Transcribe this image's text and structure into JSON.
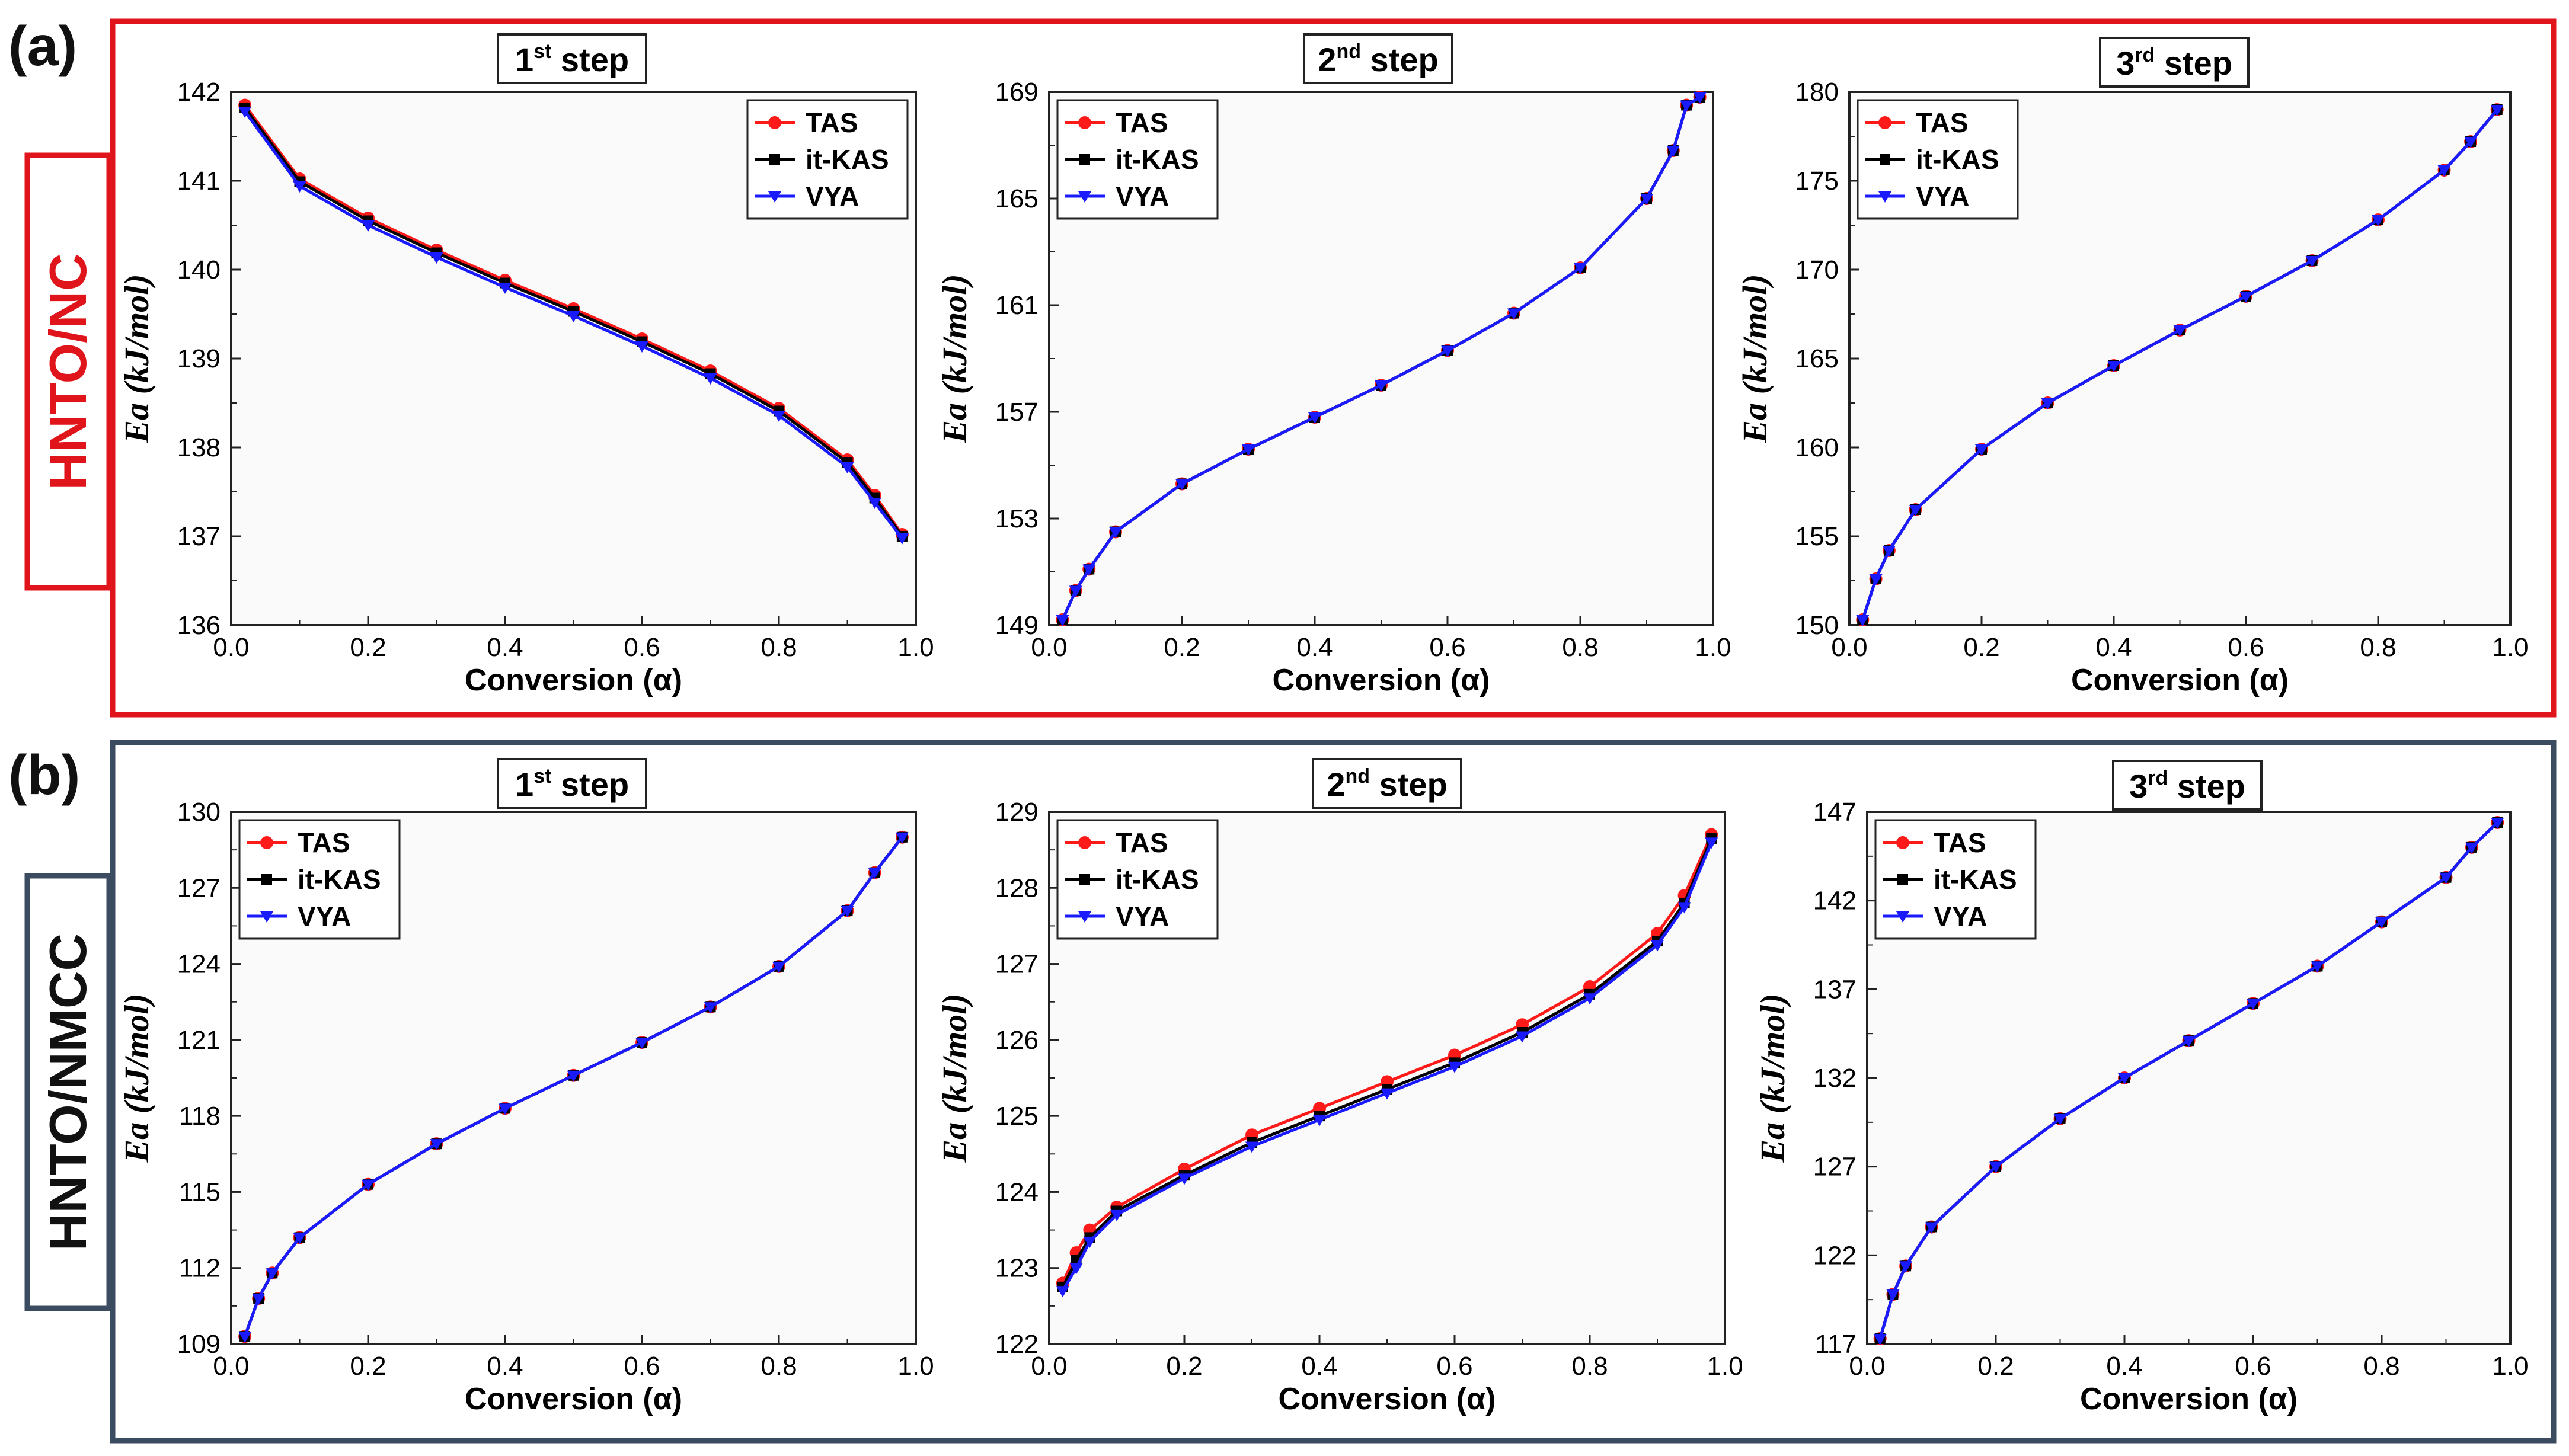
{
  "colors": {
    "panel_a_border": "#e0151b",
    "panel_b_border": "#3b4c60",
    "TAS": "#ff1a1a",
    "it-KAS": "#000000",
    "VYA": "#1a1aff"
  },
  "panels": [
    {
      "letter": "(a)",
      "label": "HNTO/NC"
    },
    {
      "letter": "(b)",
      "label": "HNTO/NMCC"
    }
  ],
  "chart_data": [
    {
      "type": "line",
      "panel": "a",
      "title_main": "1",
      "title_sup": "st",
      "title_rest": " step",
      "xlabel": "Conversion (α)",
      "ylabel": "Ea (kJ/mol)",
      "xlim": [
        0.0,
        1.0
      ],
      "ylim": [
        136,
        142
      ],
      "xticks": [
        "0.0",
        "0.2",
        "0.4",
        "0.6",
        "0.8",
        "1.0"
      ],
      "yticks": [
        "136",
        "137",
        "138",
        "139",
        "140",
        "141",
        "142"
      ],
      "legend": [
        "TAS",
        "it-KAS",
        "VYA"
      ],
      "legend_position": "top-right",
      "series": [
        {
          "name": "TAS",
          "x": [
            0.02,
            0.1,
            0.2,
            0.3,
            0.4,
            0.5,
            0.6,
            0.7,
            0.8,
            0.9,
            0.94,
            0.98
          ],
          "values": [
            141.85,
            141.02,
            140.58,
            140.22,
            139.88,
            139.56,
            139.22,
            138.86,
            138.44,
            137.86,
            137.46,
            137.02
          ]
        },
        {
          "name": "it-KAS",
          "x": [
            0.02,
            0.1,
            0.2,
            0.3,
            0.4,
            0.5,
            0.6,
            0.7,
            0.8,
            0.9,
            0.94,
            0.98
          ],
          "values": [
            141.82,
            140.99,
            140.55,
            140.19,
            139.85,
            139.53,
            139.19,
            138.83,
            138.41,
            137.83,
            137.43,
            137.0
          ]
        },
        {
          "name": "VYA",
          "x": [
            0.02,
            0.1,
            0.2,
            0.3,
            0.4,
            0.5,
            0.6,
            0.7,
            0.8,
            0.9,
            0.94,
            0.98
          ],
          "values": [
            141.78,
            140.94,
            140.5,
            140.14,
            139.8,
            139.48,
            139.14,
            138.78,
            138.36,
            137.78,
            137.38,
            136.98
          ]
        }
      ]
    },
    {
      "type": "line",
      "panel": "a",
      "title_main": "2",
      "title_sup": "nd",
      "title_rest": " step",
      "xlabel": "Conversion (α)",
      "ylabel": "Ea (kJ/mol)",
      "xlim": [
        0.0,
        1.0
      ],
      "ylim": [
        149,
        169
      ],
      "xticks": [
        "0.0",
        "0.2",
        "0.4",
        "0.6",
        "0.8",
        "1.0"
      ],
      "yticks": [
        "149",
        "153",
        "157",
        "161",
        "165",
        "169"
      ],
      "legend": [
        "TAS",
        "it-KAS",
        "VYA"
      ],
      "legend_position": "top-left",
      "series": [
        {
          "name": "TAS",
          "x": [
            0.02,
            0.04,
            0.06,
            0.1,
            0.2,
            0.3,
            0.4,
            0.5,
            0.6,
            0.7,
            0.8,
            0.9,
            0.94,
            0.96,
            0.98
          ],
          "values": [
            149.2,
            150.3,
            151.1,
            152.5,
            154.3,
            155.6,
            156.8,
            158.0,
            159.3,
            160.7,
            162.4,
            165.0,
            166.8,
            168.5,
            168.8
          ]
        },
        {
          "name": "it-KAS",
          "x": [
            0.02,
            0.04,
            0.06,
            0.1,
            0.2,
            0.3,
            0.4,
            0.5,
            0.6,
            0.7,
            0.8,
            0.9,
            0.94,
            0.96,
            0.98
          ],
          "values": [
            149.2,
            150.3,
            151.1,
            152.5,
            154.3,
            155.6,
            156.8,
            158.0,
            159.3,
            160.7,
            162.4,
            165.0,
            166.8,
            168.5,
            168.8
          ]
        },
        {
          "name": "VYA",
          "x": [
            0.02,
            0.04,
            0.06,
            0.1,
            0.2,
            0.3,
            0.4,
            0.5,
            0.6,
            0.7,
            0.8,
            0.9,
            0.94,
            0.96,
            0.98
          ],
          "values": [
            149.2,
            150.3,
            151.1,
            152.5,
            154.3,
            155.6,
            156.8,
            158.0,
            159.3,
            160.7,
            162.4,
            165.0,
            166.8,
            168.5,
            168.8
          ]
        }
      ]
    },
    {
      "type": "line",
      "panel": "a",
      "title_main": "3",
      "title_sup": "rd",
      "title_rest": " step",
      "xlabel": "Conversion (α)",
      "ylabel": "Ea (kJ/mol)",
      "xlim": [
        0.0,
        1.0
      ],
      "ylim": [
        150,
        180
      ],
      "xticks": [
        "0.0",
        "0.2",
        "0.4",
        "0.6",
        "0.8",
        "1.0"
      ],
      "yticks": [
        "150",
        "155",
        "160",
        "165",
        "170",
        "175",
        "180"
      ],
      "legend": [
        "TAS",
        "it-KAS",
        "VYA"
      ],
      "legend_position": "top-left",
      "series": [
        {
          "name": "TAS",
          "x": [
            0.02,
            0.04,
            0.06,
            0.1,
            0.2,
            0.3,
            0.4,
            0.5,
            0.6,
            0.7,
            0.8,
            0.9,
            0.94,
            0.98
          ],
          "values": [
            150.3,
            152.6,
            154.2,
            156.5,
            159.9,
            162.5,
            164.6,
            166.6,
            168.5,
            170.5,
            172.8,
            175.6,
            177.2,
            179.0
          ]
        },
        {
          "name": "it-KAS",
          "x": [
            0.02,
            0.04,
            0.06,
            0.1,
            0.2,
            0.3,
            0.4,
            0.5,
            0.6,
            0.7,
            0.8,
            0.9,
            0.94,
            0.98
          ],
          "values": [
            150.3,
            152.6,
            154.2,
            156.5,
            159.9,
            162.5,
            164.6,
            166.6,
            168.5,
            170.5,
            172.8,
            175.6,
            177.2,
            179.0
          ]
        },
        {
          "name": "VYA",
          "x": [
            0.02,
            0.04,
            0.06,
            0.1,
            0.2,
            0.3,
            0.4,
            0.5,
            0.6,
            0.7,
            0.8,
            0.9,
            0.94,
            0.98
          ],
          "values": [
            150.3,
            152.6,
            154.2,
            156.5,
            159.9,
            162.5,
            164.6,
            166.6,
            168.5,
            170.5,
            172.8,
            175.6,
            177.2,
            179.0
          ]
        }
      ]
    },
    {
      "type": "line",
      "panel": "b",
      "title_main": "1",
      "title_sup": "st",
      "title_rest": " step",
      "xlabel": "Conversion (α)",
      "ylabel": "Ea (kJ/mol)",
      "xlim": [
        0.0,
        1.0
      ],
      "ylim": [
        109,
        130
      ],
      "xticks": [
        "0.0",
        "0.2",
        "0.4",
        "0.6",
        "0.8",
        "1.0"
      ],
      "yticks": [
        "109",
        "112",
        "115",
        "118",
        "121",
        "124",
        "127",
        "130"
      ],
      "legend": [
        "TAS",
        "it-KAS",
        "VYA"
      ],
      "legend_position": "top-left",
      "series": [
        {
          "name": "TAS",
          "x": [
            0.02,
            0.04,
            0.06,
            0.1,
            0.2,
            0.3,
            0.4,
            0.5,
            0.6,
            0.7,
            0.8,
            0.9,
            0.94,
            0.98
          ],
          "values": [
            109.3,
            110.8,
            111.8,
            113.2,
            115.3,
            116.9,
            118.3,
            119.6,
            120.9,
            122.3,
            123.9,
            126.1,
            127.6,
            129.0
          ]
        },
        {
          "name": "it-KAS",
          "x": [
            0.02,
            0.04,
            0.06,
            0.1,
            0.2,
            0.3,
            0.4,
            0.5,
            0.6,
            0.7,
            0.8,
            0.9,
            0.94,
            0.98
          ],
          "values": [
            109.3,
            110.8,
            111.8,
            113.2,
            115.3,
            116.9,
            118.3,
            119.6,
            120.9,
            122.3,
            123.9,
            126.1,
            127.6,
            129.0
          ]
        },
        {
          "name": "VYA",
          "x": [
            0.02,
            0.04,
            0.06,
            0.1,
            0.2,
            0.3,
            0.4,
            0.5,
            0.6,
            0.7,
            0.8,
            0.9,
            0.94,
            0.98
          ],
          "values": [
            109.3,
            110.8,
            111.8,
            113.2,
            115.3,
            116.9,
            118.3,
            119.6,
            120.9,
            122.3,
            123.9,
            126.1,
            127.6,
            129.0
          ]
        }
      ]
    },
    {
      "type": "line",
      "panel": "b",
      "title_main": "2",
      "title_sup": "nd",
      "title_rest": " step",
      "xlabel": "Conversion (α)",
      "ylabel": "Ea (kJ/mol)",
      "xlim": [
        0.0,
        1.0
      ],
      "ylim": [
        122,
        129
      ],
      "xticks": [
        "0.0",
        "0.2",
        "0.4",
        "0.6",
        "0.8",
        "1.0"
      ],
      "yticks": [
        "122",
        "123",
        "124",
        "125",
        "126",
        "127",
        "128",
        "129"
      ],
      "legend": [
        "TAS",
        "it-KAS",
        "VYA"
      ],
      "legend_position": "top-left",
      "series": [
        {
          "name": "TAS",
          "x": [
            0.02,
            0.04,
            0.06,
            0.1,
            0.2,
            0.3,
            0.4,
            0.5,
            0.6,
            0.7,
            0.8,
            0.9,
            0.94,
            0.98
          ],
          "values": [
            122.8,
            123.2,
            123.5,
            123.8,
            124.3,
            124.75,
            125.1,
            125.45,
            125.8,
            126.2,
            126.7,
            127.4,
            127.9,
            128.7
          ]
        },
        {
          "name": "it-KAS",
          "x": [
            0.02,
            0.04,
            0.06,
            0.1,
            0.2,
            0.3,
            0.4,
            0.5,
            0.6,
            0.7,
            0.8,
            0.9,
            0.94,
            0.98
          ],
          "values": [
            122.75,
            123.1,
            123.4,
            123.75,
            124.22,
            124.65,
            125.0,
            125.35,
            125.7,
            126.1,
            126.6,
            127.3,
            127.8,
            128.65
          ]
        },
        {
          "name": "VYA",
          "x": [
            0.02,
            0.04,
            0.06,
            0.1,
            0.2,
            0.3,
            0.4,
            0.5,
            0.6,
            0.7,
            0.8,
            0.9,
            0.94,
            0.98
          ],
          "values": [
            122.7,
            123.0,
            123.35,
            123.7,
            124.18,
            124.6,
            124.95,
            125.3,
            125.65,
            126.05,
            126.55,
            127.25,
            127.75,
            128.6
          ]
        }
      ]
    },
    {
      "type": "line",
      "panel": "b",
      "title_main": "3",
      "title_sup": "rd",
      "title_rest": " step",
      "xlabel": "Conversion (α)",
      "ylabel": "Ea (kJ/mol)",
      "xlim": [
        0.0,
        1.0
      ],
      "ylim": [
        117,
        147
      ],
      "xticks": [
        "0.0",
        "0.2",
        "0.4",
        "0.6",
        "0.8",
        "1.0"
      ],
      "yticks": [
        "117",
        "122",
        "127",
        "132",
        "137",
        "142",
        "147"
      ],
      "legend": [
        "TAS",
        "it-KAS",
        "VYA"
      ],
      "legend_position": "top-left",
      "series": [
        {
          "name": "TAS",
          "x": [
            0.02,
            0.04,
            0.06,
            0.1,
            0.2,
            0.3,
            0.4,
            0.5,
            0.6,
            0.7,
            0.8,
            0.9,
            0.94,
            0.98
          ],
          "values": [
            117.3,
            119.8,
            121.4,
            123.6,
            127.0,
            129.7,
            132.0,
            134.1,
            136.2,
            138.3,
            140.8,
            143.3,
            145.0,
            146.4
          ]
        },
        {
          "name": "it-KAS",
          "x": [
            0.02,
            0.04,
            0.06,
            0.1,
            0.2,
            0.3,
            0.4,
            0.5,
            0.6,
            0.7,
            0.8,
            0.9,
            0.94,
            0.98
          ],
          "values": [
            117.3,
            119.8,
            121.4,
            123.6,
            127.0,
            129.7,
            132.0,
            134.1,
            136.2,
            138.3,
            140.8,
            143.3,
            145.0,
            146.4
          ]
        },
        {
          "name": "VYA",
          "x": [
            0.02,
            0.04,
            0.06,
            0.1,
            0.2,
            0.3,
            0.4,
            0.5,
            0.6,
            0.7,
            0.8,
            0.9,
            0.94,
            0.98
          ],
          "values": [
            117.3,
            119.8,
            121.4,
            123.6,
            127.0,
            129.7,
            132.0,
            134.1,
            136.2,
            138.3,
            140.8,
            143.3,
            145.0,
            146.4
          ]
        }
      ]
    }
  ]
}
